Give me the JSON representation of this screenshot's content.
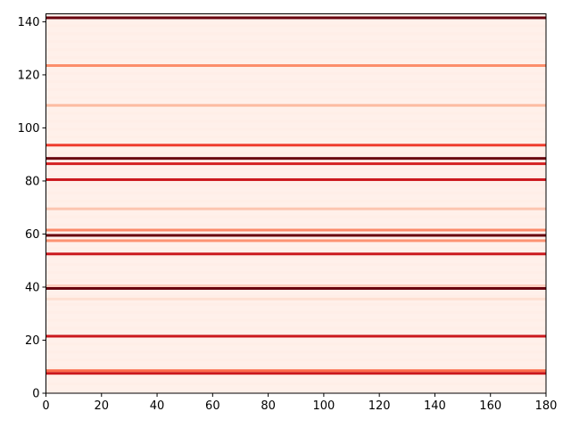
{
  "chart_data": {
    "type": "heatmap",
    "title": "",
    "xlabel": "",
    "ylabel": "",
    "colormap": "Reds",
    "xlim": [
      0,
      180
    ],
    "ylim": [
      0,
      143
    ],
    "x_ticks": [
      "0",
      "20",
      "40",
      "60",
      "80",
      "100",
      "120",
      "140",
      "160",
      "180"
    ],
    "y_ticks": [
      "0",
      "20",
      "40",
      "60",
      "80",
      "100",
      "120",
      "140"
    ],
    "background_color": "#fff0ea",
    "rows": [
      {
        "y": 7,
        "color": "#cb181d"
      },
      {
        "y": 8,
        "color": "#fb6a4a"
      },
      {
        "y": 21,
        "color": "#cb181d"
      },
      {
        "y": 35,
        "color": "#fee0d2"
      },
      {
        "y": 39,
        "color": "#67000d"
      },
      {
        "y": 40,
        "color": "#fdd0c0"
      },
      {
        "y": 52,
        "color": "#cb181d"
      },
      {
        "y": 57,
        "color": "#fc9272"
      },
      {
        "y": 59,
        "color": "#67000d"
      },
      {
        "y": 61,
        "color": "#fc8a6a"
      },
      {
        "y": 69,
        "color": "#fcc5b0"
      },
      {
        "y": 80,
        "color": "#cb181d"
      },
      {
        "y": 86,
        "color": "#d42020"
      },
      {
        "y": 88,
        "color": "#67000d"
      },
      {
        "y": 93,
        "color": "#ef3b2c"
      },
      {
        "y": 108,
        "color": "#fcbba1"
      },
      {
        "y": 123,
        "color": "#fc8d6a"
      },
      {
        "y": 141,
        "color": "#67000d"
      }
    ]
  }
}
